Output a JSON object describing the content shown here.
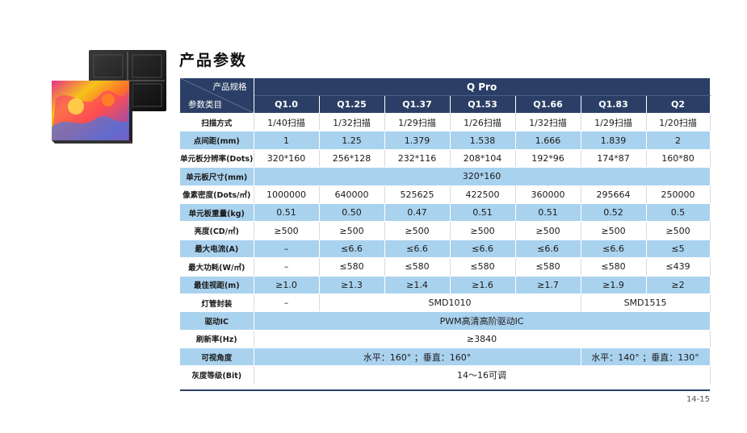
{
  "title": "产品参数",
  "page_number": "14-15",
  "header": {
    "diag_top": "产品规格",
    "diag_bottom": "参数类目",
    "model": "Q Pro",
    "columns": [
      "Q1.0",
      "Q1.25",
      "Q1.37",
      "Q1.53",
      "Q1.66",
      "Q1.83",
      "Q2"
    ]
  },
  "rows": [
    {
      "label": "扫描方式",
      "values": [
        "1/40扫描",
        "1/32扫描",
        "1/29扫描",
        "1/26扫描",
        "1/32扫描",
        "1/29扫描",
        "1/20扫描"
      ]
    },
    {
      "label": "点间距(mm)",
      "values": [
        "1",
        "1.25",
        "1.379",
        "1.538",
        "1.666",
        "1.839",
        "2"
      ]
    },
    {
      "label": "单元板分辨率(Dots)",
      "values": [
        "320*160",
        "256*128",
        "232*116",
        "208*104",
        "192*96",
        "174*87",
        "160*80"
      ]
    },
    {
      "label": "单元板尺寸(mm)",
      "merged": "320*160"
    },
    {
      "label": "像素密度(Dots/㎡)",
      "values": [
        "1000000",
        "640000",
        "525625",
        "422500",
        "360000",
        "295664",
        "250000"
      ]
    },
    {
      "label": "单元板重量(kg)",
      "values": [
        "0.51",
        "0.50",
        "0.47",
        "0.51",
        "0.51",
        "0.52",
        "0.5"
      ]
    },
    {
      "label": "亮度(CD/㎡)",
      "values": [
        "≥500",
        "≥500",
        "≥500",
        "≥500",
        "≥500",
        "≥500",
        "≥500"
      ]
    },
    {
      "label": "最大电流(A)",
      "values": [
        "–",
        "≤6.6",
        "≤6.6",
        "≤6.6",
        "≤6.6",
        "≤6.6",
        "≤5"
      ]
    },
    {
      "label": "最大功耗(W/㎡)",
      "values": [
        "–",
        "≤580",
        "≤580",
        "≤580",
        "≤580",
        "≤580",
        "≤439"
      ]
    },
    {
      "label": "最佳视距(m)",
      "values": [
        "≥1.0",
        "≥1.3",
        "≥1.4",
        "≥1.6",
        "≥1.7",
        "≥1.9",
        "≥2"
      ]
    },
    {
      "label": "灯管封装",
      "first": "–",
      "mid": "SMD1010",
      "last": "SMD1515"
    },
    {
      "label": "驱动IC",
      "merged": "PWM高清高阶驱动IC"
    },
    {
      "label": "刷新率(Hz)",
      "merged": "≥3840"
    },
    {
      "label": "可视角度",
      "left": "水平：160° ；垂直：160°",
      "right": "水平：140° ；垂直：130°"
    },
    {
      "label": "灰度等级(Bit)",
      "merged": "14～16可调"
    }
  ]
}
